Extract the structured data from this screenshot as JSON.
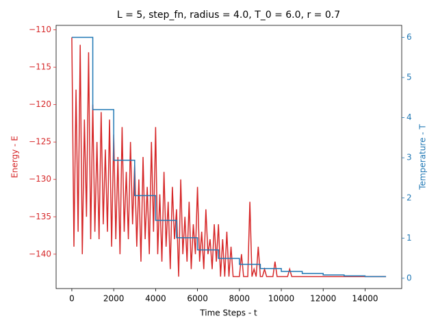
{
  "chart_data": {
    "type": "line",
    "title": "L = 5, step_fn, radius = 4.0, T_0 = 6.0, r = 0.7",
    "xlabel": "Time Steps - t",
    "ylabel": "Energy - E",
    "y2label": "Temperature - T",
    "xlim": [
      -750,
      15750
    ],
    "xticks": [
      0,
      2000,
      4000,
      6000,
      8000,
      10000,
      12000,
      14000
    ],
    "ylim": [
      -144.6,
      -109.4
    ],
    "yticks": [
      {
        "value": -140,
        "label": "−140"
      },
      {
        "value": -135,
        "label": "−135"
      },
      {
        "value": -130,
        "label": "−130"
      },
      {
        "value": -125,
        "label": "−125"
      },
      {
        "value": -120,
        "label": "−120"
      },
      {
        "value": -115,
        "label": "−115"
      },
      {
        "value": -110,
        "label": "−110"
      }
    ],
    "y2lim": [
      -0.257,
      6.298
    ],
    "y2ticks": [
      0,
      1,
      2,
      3,
      4,
      5,
      6
    ],
    "series": [
      {
        "color": "#d62728",
        "axis": "y",
        "x": [
          0,
          100,
          200,
          300,
          400,
          500,
          600,
          700,
          800,
          900,
          1000,
          1100,
          1200,
          1300,
          1400,
          1500,
          1600,
          1700,
          1800,
          1900,
          2000,
          2100,
          2200,
          2300,
          2400,
          2500,
          2600,
          2700,
          2800,
          2900,
          3000,
          3100,
          3200,
          3300,
          3400,
          3500,
          3600,
          3700,
          3800,
          3900,
          4000,
          4100,
          4200,
          4300,
          4400,
          4500,
          4600,
          4700,
          4800,
          4900,
          5000,
          5100,
          5200,
          5300,
          5400,
          5500,
          5600,
          5700,
          5800,
          5900,
          6000,
          6100,
          6200,
          6300,
          6400,
          6500,
          6600,
          6700,
          6800,
          6900,
          7000,
          7100,
          7200,
          7300,
          7400,
          7500,
          7600,
          7700,
          7800,
          7900,
          8000,
          8100,
          8200,
          8300,
          8400,
          8500,
          8600,
          8700,
          8800,
          8900,
          9000,
          9100,
          9200,
          9300,
          9400,
          9500,
          9600,
          9700,
          9800,
          9900,
          10000,
          10100,
          10200,
          10300,
          10400,
          10500,
          10600,
          10700,
          10800,
          10900,
          11000,
          11100,
          11200,
          11300,
          11400,
          11500,
          11600,
          11700,
          11800,
          11900,
          12000,
          12100,
          12200,
          12300,
          12400,
          12500,
          12600,
          12700,
          12800,
          12900,
          13000,
          13100,
          13200,
          13300,
          13400,
          13500,
          13600,
          13700,
          13800,
          13900,
          14000,
          14100,
          14200,
          14300,
          14400,
          14500,
          14600,
          14700,
          14800,
          14900,
          15000
        ],
        "values": [
          -111,
          -139,
          -118,
          -137,
          -112,
          -140,
          -122,
          -135,
          -113,
          -138,
          -120,
          -137,
          -125,
          -138,
          -121,
          -136,
          -126,
          -137,
          -122,
          -139,
          -124,
          -138,
          -127,
          -140,
          -123,
          -137,
          -129,
          -138,
          -125,
          -136,
          -128,
          -139,
          -130,
          -141,
          -127,
          -138,
          -131,
          -140,
          -125,
          -137,
          -123,
          -140,
          -132,
          -141,
          -129,
          -139,
          -133,
          -142,
          -131,
          -138,
          -134,
          -143,
          -130,
          -140,
          -135,
          -141,
          -133,
          -142,
          -136,
          -140,
          -131,
          -141,
          -137,
          -142,
          -134,
          -140,
          -138,
          -142,
          -136,
          -141,
          -136,
          -143,
          -138,
          -143,
          -137,
          -143,
          -139,
          -143,
          -143,
          -143,
          -143,
          -140,
          -143,
          -143,
          -143,
          -133,
          -143,
          -142,
          -143,
          -139,
          -143,
          -143,
          -142,
          -143,
          -143,
          -143,
          -143,
          -141,
          -143,
          -143,
          -143,
          -143,
          -143,
          -143,
          -142,
          -143,
          -143,
          -143,
          -143,
          -143,
          -143,
          -143,
          -143,
          -143,
          -143,
          -143,
          -143,
          -143,
          -143,
          -143,
          -143,
          -143,
          -143,
          -143,
          -143,
          -143,
          -143,
          -143,
          -143,
          -143,
          -143,
          -143,
          -143,
          -143,
          -143,
          -143,
          -143,
          -143,
          -143,
          -143,
          -143,
          -143,
          -143,
          -143,
          -143,
          -143,
          -143,
          -143,
          -143,
          -143,
          -143
        ]
      },
      {
        "color": "#1f77b4",
        "axis": "y2",
        "x": [
          0,
          1000,
          1000,
          2000,
          2000,
          3000,
          3000,
          4000,
          4000,
          5000,
          5000,
          6000,
          6000,
          7000,
          7000,
          8000,
          8000,
          9000,
          9000,
          10000,
          10000,
          11000,
          11000,
          12000,
          12000,
          13000,
          13000,
          14000,
          14000,
          15000
        ],
        "values": [
          6,
          6,
          4.2,
          4.2,
          2.94,
          2.94,
          2.058,
          2.058,
          1.441,
          1.441,
          1.008,
          1.008,
          0.706,
          0.706,
          0.494,
          0.494,
          0.346,
          0.346,
          0.242,
          0.242,
          0.169,
          0.169,
          0.119,
          0.119,
          0.083,
          0.083,
          0.058,
          0.058,
          0.041,
          0.041
        ]
      }
    ]
  }
}
